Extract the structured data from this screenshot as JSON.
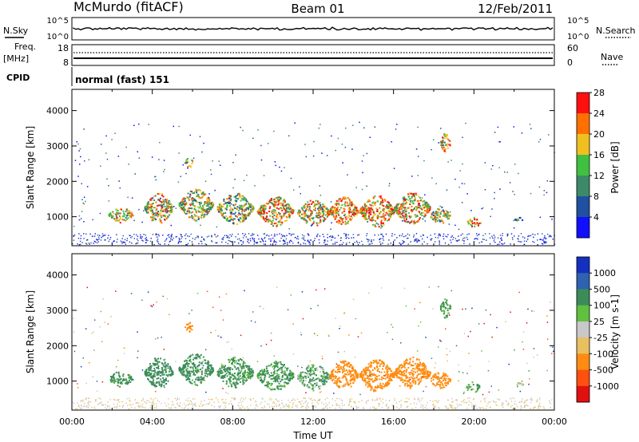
{
  "header": {
    "station": "McMurdo (fitACF)",
    "beam": "Beam 01",
    "date": "12/Feb/2011"
  },
  "top_panels": {
    "nsky_label": "N.Sky",
    "nsky_ticks": [
      "10^5",
      "10^0"
    ],
    "nsearch_label": "N.Search",
    "nsearch_ticks": [
      "10^5",
      "10^0"
    ],
    "freq_label_line1": "Freq.",
    "freq_label_line2": "[MHz]",
    "freq_ticks": [
      "18",
      "8"
    ],
    "nave_label": "Nave",
    "nave_ticks": [
      "60",
      "0"
    ],
    "cpid_label": "CPID",
    "cpid_text": "normal (fast) 151"
  },
  "chart_data": [
    {
      "type": "heatmap",
      "title": "",
      "ylabel": "Slant Range [km]",
      "yticks": [
        "1000",
        "2000",
        "3000",
        "4000"
      ],
      "ylim": [
        180,
        4600
      ],
      "xlim": [
        0,
        24
      ],
      "colorbar_label": "Power [dB]",
      "colorbar_ticks": [
        "4",
        "8",
        "12",
        "16",
        "20",
        "24",
        "28"
      ],
      "colorbar_range": [
        0,
        30
      ],
      "colors": [
        "#1010ff",
        "#2050a0",
        "#3c8a6a",
        "#40c040",
        "#f0c020",
        "#ff7000",
        "#ff1010"
      ],
      "echo_regions": [
        {
          "t_start": 1.8,
          "t_end": 3.0,
          "range_low": 850,
          "range_high": 1300,
          "level": 0.55
        },
        {
          "t_start": 3.6,
          "t_end": 5.0,
          "range_low": 800,
          "range_high": 1700,
          "level": 0.6
        },
        {
          "t_start": 5.3,
          "t_end": 7.0,
          "range_low": 900,
          "range_high": 1800,
          "level": 0.55
        },
        {
          "t_start": 7.2,
          "t_end": 9.0,
          "range_low": 800,
          "range_high": 1700,
          "level": 0.5
        },
        {
          "t_start": 9.2,
          "t_end": 11.0,
          "range_low": 750,
          "range_high": 1600,
          "level": 0.65
        },
        {
          "t_start": 11.2,
          "t_end": 12.8,
          "range_low": 750,
          "range_high": 1500,
          "level": 0.6
        },
        {
          "t_start": 12.8,
          "t_end": 14.2,
          "range_low": 750,
          "range_high": 1600,
          "level": 0.75
        },
        {
          "t_start": 14.3,
          "t_end": 16.0,
          "range_low": 700,
          "range_high": 1650,
          "level": 0.7
        },
        {
          "t_start": 16.0,
          "t_end": 17.8,
          "range_low": 800,
          "range_high": 1700,
          "level": 0.65
        },
        {
          "t_start": 17.8,
          "t_end": 18.8,
          "range_low": 800,
          "range_high": 1300,
          "level": 0.5
        },
        {
          "t_start": 19.6,
          "t_end": 20.3,
          "range_low": 700,
          "range_high": 1000,
          "level": 0.8
        },
        {
          "t_start": 22.0,
          "t_end": 22.4,
          "range_low": 850,
          "range_high": 1000,
          "level": 0.3
        },
        {
          "t_start": 18.3,
          "t_end": 18.8,
          "range_low": 2800,
          "range_high": 3400,
          "level": 0.7
        },
        {
          "t_start": 5.6,
          "t_end": 6.0,
          "range_low": 2400,
          "range_high": 2700,
          "level": 0.45
        }
      ]
    },
    {
      "type": "heatmap",
      "title": "",
      "ylabel": "Slant Range [km]",
      "yticks": [
        "1000",
        "2000",
        "3000",
        "4000"
      ],
      "ylim": [
        180,
        4600
      ],
      "xlim": [
        0,
        24
      ],
      "xticks": [
        "00:00",
        "04:00",
        "08:00",
        "12:00",
        "16:00",
        "20:00",
        "00:00"
      ],
      "xlabel": "Time UT",
      "colorbar_label": "Velocity [m s-1]",
      "colorbar_ticks": [
        "1000",
        "500",
        "100",
        "25",
        "-25",
        "-100",
        "-500",
        "-1000"
      ],
      "colors": [
        "#1530c0",
        "#2f62b0",
        "#3c8c5a",
        "#60c040",
        "#c8c8c8",
        "#e8c060",
        "#ff8c10",
        "#ff5010",
        "#e01010"
      ],
      "echo_regions": [
        {
          "t_start": 1.8,
          "t_end": 3.0,
          "range_low": 850,
          "range_high": 1300,
          "velocity": 100
        },
        {
          "t_start": 3.6,
          "t_end": 5.0,
          "range_low": 800,
          "range_high": 1700,
          "velocity": 120
        },
        {
          "t_start": 5.3,
          "t_end": 7.0,
          "range_low": 900,
          "range_high": 1800,
          "velocity": 110
        },
        {
          "t_start": 7.2,
          "t_end": 9.0,
          "range_low": 800,
          "range_high": 1700,
          "velocity": 100
        },
        {
          "t_start": 9.2,
          "t_end": 11.0,
          "range_low": 750,
          "range_high": 1600,
          "velocity": 90
        },
        {
          "t_start": 11.2,
          "t_end": 12.8,
          "range_low": 750,
          "range_high": 1500,
          "velocity": 60
        },
        {
          "t_start": 12.8,
          "t_end": 14.2,
          "range_low": 750,
          "range_high": 1600,
          "velocity": -150
        },
        {
          "t_start": 14.3,
          "t_end": 16.0,
          "range_low": 700,
          "range_high": 1650,
          "velocity": -200
        },
        {
          "t_start": 16.0,
          "t_end": 17.8,
          "range_low": 800,
          "range_high": 1700,
          "velocity": -180
        },
        {
          "t_start": 17.8,
          "t_end": 18.8,
          "range_low": 800,
          "range_high": 1300,
          "velocity": -120
        },
        {
          "t_start": 19.6,
          "t_end": 20.3,
          "range_low": 700,
          "range_high": 1000,
          "velocity": 60
        },
        {
          "t_start": 22.0,
          "t_end": 22.4,
          "range_low": 850,
          "range_high": 1000,
          "velocity": 20
        },
        {
          "t_start": 18.3,
          "t_end": 18.8,
          "range_low": 2800,
          "range_high": 3400,
          "velocity": 80
        },
        {
          "t_start": 5.6,
          "t_end": 6.0,
          "range_low": 2400,
          "range_high": 2700,
          "velocity": -150
        }
      ]
    }
  ]
}
